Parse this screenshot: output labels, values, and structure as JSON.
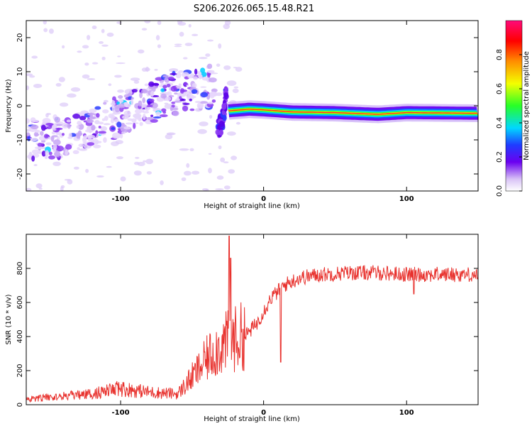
{
  "title": "S206.2026.065.15.48.R21",
  "chart_data": [
    {
      "type": "heatmap",
      "name": "spectrogram",
      "xlabel": "Height of straight line (km)",
      "ylabel": "Frequency (Hz)",
      "xlim": [
        -166,
        150
      ],
      "ylim": [
        -25,
        25
      ],
      "xticks": [
        -100,
        0,
        100
      ],
      "yticks": [
        -20,
        -10,
        0,
        10,
        20
      ],
      "colorbar": {
        "label": "Normalized spectral amplitude",
        "ticks": [
          0.0,
          0.2,
          0.4,
          0.6,
          0.8
        ],
        "range": [
          0,
          1
        ]
      },
      "ridge": {
        "description": "dominant frequency ridge",
        "segments": [
          {
            "x": [
              -166,
              -140,
              -120,
              -100,
              -80,
              -60,
              -45,
              -33
            ],
            "y": [
              -10,
              -9,
              -7,
              -3,
              1,
              4,
              5,
              6
            ]
          },
          {
            "x": [
              -32,
              -28,
              -26
            ],
            "y": [
              -7,
              -4,
              4
            ]
          },
          {
            "x": [
              -25,
              -10,
              0,
              20,
              50,
              80,
              100,
              150
            ],
            "y": [
              -1.5,
              -1,
              -1.2,
              -1.8,
              -2,
              -2.5,
              -2,
              -2.2
            ]
          }
        ]
      }
    },
    {
      "type": "line",
      "name": "snr",
      "xlabel": "Height of straight line (km)",
      "ylabel": "SNR (10 * v/v)",
      "xlim": [
        -166,
        150
      ],
      "ylim": [
        0,
        1000
      ],
      "xticks": [
        -100,
        0,
        100
      ],
      "yticks": [
        0,
        200,
        400,
        600,
        800
      ],
      "color": "#e8322e",
      "envelope": {
        "x": [
          -166,
          -120,
          -100,
          -80,
          -60,
          -45,
          -35,
          -25,
          -15,
          -5,
          5,
          15,
          25,
          40,
          60,
          80,
          100,
          120,
          150
        ],
        "y": [
          30,
          60,
          90,
          70,
          60,
          200,
          300,
          350,
          380,
          470,
          620,
          700,
          740,
          760,
          770,
          770,
          760,
          760,
          760
        ]
      },
      "spikes": [
        {
          "x": -24,
          "y": 990
        },
        {
          "x": -23,
          "y": 860
        },
        {
          "x": 12,
          "y": 250
        },
        {
          "x": 105,
          "y": 650
        }
      ]
    }
  ]
}
